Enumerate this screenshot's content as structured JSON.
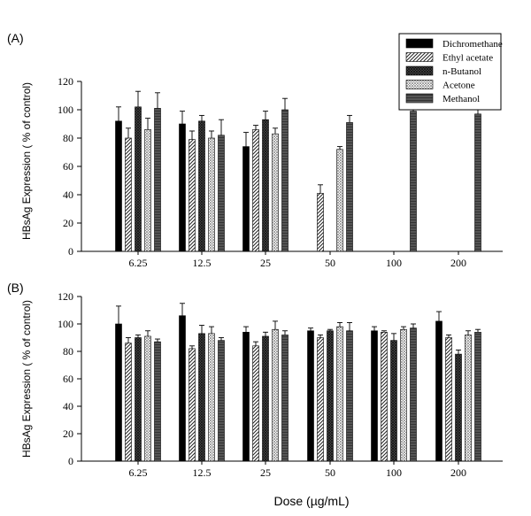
{
  "figure": {
    "ylabel": "HBsAg Expression ( % of control)",
    "xlabel": "Dose (µg/mL)"
  },
  "legend": {
    "entries": [
      {
        "name": "Dichromethane",
        "pattern": "solid-black"
      },
      {
        "name": "Ethyl acetate",
        "pattern": "diagonal-hatch"
      },
      {
        "name": "n-Butanol",
        "pattern": "dark-crosshatch"
      },
      {
        "name": "Acetone",
        "pattern": "light-dots"
      },
      {
        "name": "Methanol",
        "pattern": "dark-horizontal"
      }
    ]
  },
  "chart_data": [
    {
      "type": "bar",
      "panel_label": "(A)",
      "categories": [
        "6.25",
        "12.5",
        "25",
        "50",
        "100",
        "200"
      ],
      "ylim": [
        0,
        120
      ],
      "yticks": [
        0,
        20,
        40,
        60,
        80,
        100,
        120
      ],
      "grid": false,
      "legend_position": "top-right",
      "series": [
        {
          "name": "Dichromethane",
          "values": [
            92,
            90,
            74,
            null,
            null,
            null
          ],
          "errors": [
            10,
            9,
            10,
            null,
            null,
            null
          ]
        },
        {
          "name": "Ethyl acetate",
          "values": [
            80,
            79,
            86,
            41,
            null,
            null
          ],
          "errors": [
            7,
            6,
            3,
            6,
            null,
            null
          ]
        },
        {
          "name": "n-Butanol",
          "values": [
            102,
            92,
            93,
            null,
            null,
            null
          ],
          "errors": [
            11,
            4,
            6,
            null,
            null,
            null
          ]
        },
        {
          "name": "Acetone",
          "values": [
            86,
            80,
            83,
            72,
            null,
            null
          ],
          "errors": [
            8,
            5,
            4,
            2,
            null,
            null
          ]
        },
        {
          "name": "Methanol",
          "values": [
            101,
            82,
            100,
            91,
            99,
            97
          ],
          "errors": [
            11,
            11,
            8,
            5,
            6,
            3
          ]
        }
      ]
    },
    {
      "type": "bar",
      "panel_label": "(B)",
      "categories": [
        "6.25",
        "12.5",
        "25",
        "50",
        "100",
        "200"
      ],
      "ylim": [
        0,
        120
      ],
      "yticks": [
        0,
        20,
        40,
        60,
        80,
        100,
        120
      ],
      "grid": false,
      "series": [
        {
          "name": "Dichromethane",
          "values": [
            100,
            106,
            94,
            95,
            95,
            102
          ],
          "errors": [
            13,
            9,
            4,
            2,
            3,
            7
          ]
        },
        {
          "name": "Ethyl acetate",
          "values": [
            86,
            82,
            84,
            90,
            94,
            90
          ],
          "errors": [
            4,
            2,
            3,
            2,
            1,
            2
          ]
        },
        {
          "name": "n-Butanol",
          "values": [
            90,
            93,
            91,
            95,
            88,
            78
          ],
          "errors": [
            2,
            6,
            3,
            1,
            5,
            3
          ]
        },
        {
          "name": "Acetone",
          "values": [
            91,
            93,
            96,
            98,
            96,
            92
          ],
          "errors": [
            4,
            5,
            6,
            3,
            2,
            3
          ]
        },
        {
          "name": "Methanol",
          "values": [
            87,
            88,
            92,
            95,
            97,
            94
          ],
          "errors": [
            2,
            2,
            3,
            6,
            3,
            2
          ]
        }
      ]
    }
  ]
}
